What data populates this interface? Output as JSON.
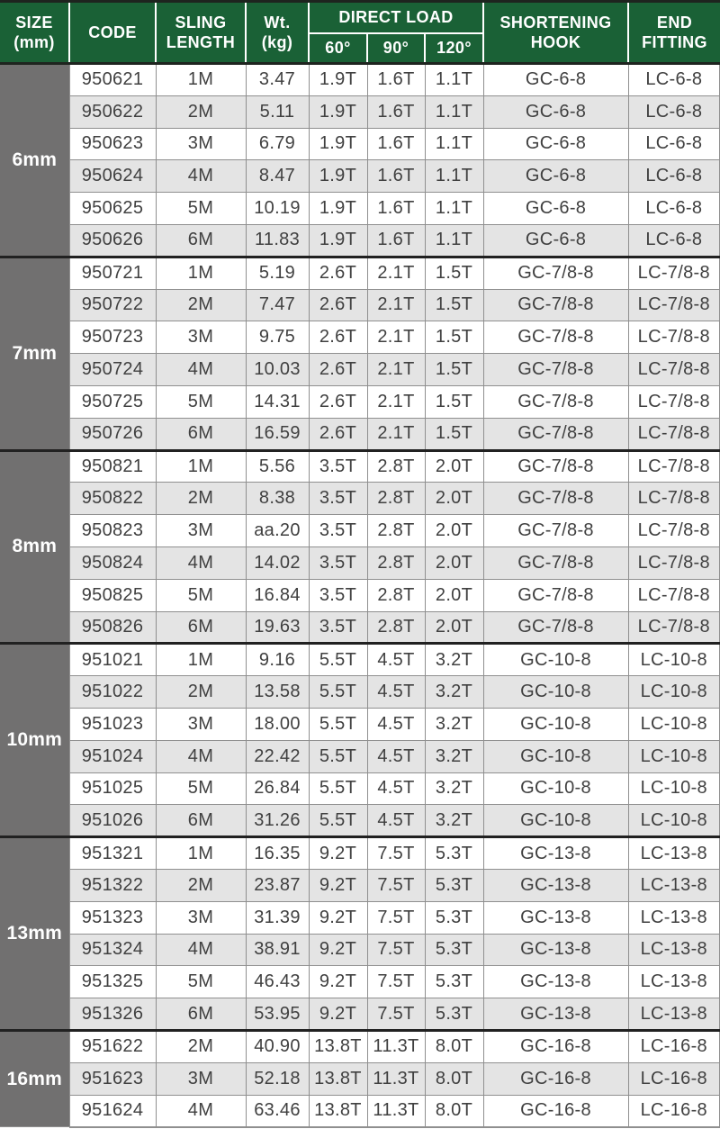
{
  "colors": {
    "header_green": "#1a6136",
    "header_divider_white": "#ffffff",
    "dark_rule": "#1e241f",
    "group_divider": "#212121",
    "size_column_gray": "#717070",
    "row_alternate_gray": "#e4e4e4",
    "row_white": "#ffffff",
    "grid_line_gray": "#8f8f8f",
    "body_text": "#404040",
    "header_text": "#ffffff"
  },
  "header": {
    "size": "SIZE\n(mm)",
    "code": "CODE",
    "sling_length": "SLING\nLENGTH",
    "weight": "Wt.\n(kg)",
    "direct_load": "DIRECT LOAD",
    "angle_60": "60°",
    "angle_90": "90°",
    "angle_120": "120°",
    "shortening_hook": "SHORTENING\nHOOK",
    "end_fitting": "END\nFITTING"
  },
  "column_keys": [
    "code",
    "sling_length",
    "weight",
    "load_60",
    "load_90",
    "load_120",
    "shortening_hook",
    "end_fitting"
  ],
  "groups": [
    {
      "size": "6mm",
      "rows": [
        [
          "950621",
          "1M",
          "3.47",
          "1.9T",
          "1.6T",
          "1.1T",
          "GC-6-8",
          "LC-6-8"
        ],
        [
          "950622",
          "2M",
          "5.11",
          "1.9T",
          "1.6T",
          "1.1T",
          "GC-6-8",
          "LC-6-8"
        ],
        [
          "950623",
          "3M",
          "6.79",
          "1.9T",
          "1.6T",
          "1.1T",
          "GC-6-8",
          "LC-6-8"
        ],
        [
          "950624",
          "4M",
          "8.47",
          "1.9T",
          "1.6T",
          "1.1T",
          "GC-6-8",
          "LC-6-8"
        ],
        [
          "950625",
          "5M",
          "10.19",
          "1.9T",
          "1.6T",
          "1.1T",
          "GC-6-8",
          "LC-6-8"
        ],
        [
          "950626",
          "6M",
          "11.83",
          "1.9T",
          "1.6T",
          "1.1T",
          "GC-6-8",
          "LC-6-8"
        ]
      ]
    },
    {
      "size": "7mm",
      "rows": [
        [
          "950721",
          "1M",
          "5.19",
          "2.6T",
          "2.1T",
          "1.5T",
          "GC-7/8-8",
          "LC-7/8-8"
        ],
        [
          "950722",
          "2M",
          "7.47",
          "2.6T",
          "2.1T",
          "1.5T",
          "GC-7/8-8",
          "LC-7/8-8"
        ],
        [
          "950723",
          "3M",
          "9.75",
          "2.6T",
          "2.1T",
          "1.5T",
          "GC-7/8-8",
          "LC-7/8-8"
        ],
        [
          "950724",
          "4M",
          "10.03",
          "2.6T",
          "2.1T",
          "1.5T",
          "GC-7/8-8",
          "LC-7/8-8"
        ],
        [
          "950725",
          "5M",
          "14.31",
          "2.6T",
          "2.1T",
          "1.5T",
          "GC-7/8-8",
          "LC-7/8-8"
        ],
        [
          "950726",
          "6M",
          "16.59",
          "2.6T",
          "2.1T",
          "1.5T",
          "GC-7/8-8",
          "LC-7/8-8"
        ]
      ]
    },
    {
      "size": "8mm",
      "rows": [
        [
          "950821",
          "1M",
          "5.56",
          "3.5T",
          "2.8T",
          "2.0T",
          "GC-7/8-8",
          "LC-7/8-8"
        ],
        [
          "950822",
          "2M",
          "8.38",
          "3.5T",
          "2.8T",
          "2.0T",
          "GC-7/8-8",
          "LC-7/8-8"
        ],
        [
          "950823",
          "3M",
          "aa.20",
          "3.5T",
          "2.8T",
          "2.0T",
          "GC-7/8-8",
          "LC-7/8-8"
        ],
        [
          "950824",
          "4M",
          "14.02",
          "3.5T",
          "2.8T",
          "2.0T",
          "GC-7/8-8",
          "LC-7/8-8"
        ],
        [
          "950825",
          "5M",
          "16.84",
          "3.5T",
          "2.8T",
          "2.0T",
          "GC-7/8-8",
          "LC-7/8-8"
        ],
        [
          "950826",
          "6M",
          "19.63",
          "3.5T",
          "2.8T",
          "2.0T",
          "GC-7/8-8",
          "LC-7/8-8"
        ]
      ]
    },
    {
      "size": "10mm",
      "rows": [
        [
          "951021",
          "1M",
          "9.16",
          "5.5T",
          "4.5T",
          "3.2T",
          "GC-10-8",
          "LC-10-8"
        ],
        [
          "951022",
          "2M",
          "13.58",
          "5.5T",
          "4.5T",
          "3.2T",
          "GC-10-8",
          "LC-10-8"
        ],
        [
          "951023",
          "3M",
          "18.00",
          "5.5T",
          "4.5T",
          "3.2T",
          "GC-10-8",
          "LC-10-8"
        ],
        [
          "951024",
          "4M",
          "22.42",
          "5.5T",
          "4.5T",
          "3.2T",
          "GC-10-8",
          "LC-10-8"
        ],
        [
          "951025",
          "5M",
          "26.84",
          "5.5T",
          "4.5T",
          "3.2T",
          "GC-10-8",
          "LC-10-8"
        ],
        [
          "951026",
          "6M",
          "31.26",
          "5.5T",
          "4.5T",
          "3.2T",
          "GC-10-8",
          "LC-10-8"
        ]
      ]
    },
    {
      "size": "13mm",
      "rows": [
        [
          "951321",
          "1M",
          "16.35",
          "9.2T",
          "7.5T",
          "5.3T",
          "GC-13-8",
          "LC-13-8"
        ],
        [
          "951322",
          "2M",
          "23.87",
          "9.2T",
          "7.5T",
          "5.3T",
          "GC-13-8",
          "LC-13-8"
        ],
        [
          "951323",
          "3M",
          "31.39",
          "9.2T",
          "7.5T",
          "5.3T",
          "GC-13-8",
          "LC-13-8"
        ],
        [
          "951324",
          "4M",
          "38.91",
          "9.2T",
          "7.5T",
          "5.3T",
          "GC-13-8",
          "LC-13-8"
        ],
        [
          "951325",
          "5M",
          "46.43",
          "9.2T",
          "7.5T",
          "5.3T",
          "GC-13-8",
          "LC-13-8"
        ],
        [
          "951326",
          "6M",
          "53.95",
          "9.2T",
          "7.5T",
          "5.3T",
          "GC-13-8",
          "LC-13-8"
        ]
      ]
    },
    {
      "size": "16mm",
      "rows": [
        [
          "951622",
          "2M",
          "40.90",
          "13.8T",
          "11.3T",
          "8.0T",
          "GC-16-8",
          "LC-16-8"
        ],
        [
          "951623",
          "3M",
          "52.18",
          "13.8T",
          "11.3T",
          "8.0T",
          "GC-16-8",
          "LC-16-8"
        ],
        [
          "951624",
          "4M",
          "63.46",
          "13.8T",
          "11.3T",
          "8.0T",
          "GC-16-8",
          "LC-16-8"
        ]
      ]
    }
  ]
}
